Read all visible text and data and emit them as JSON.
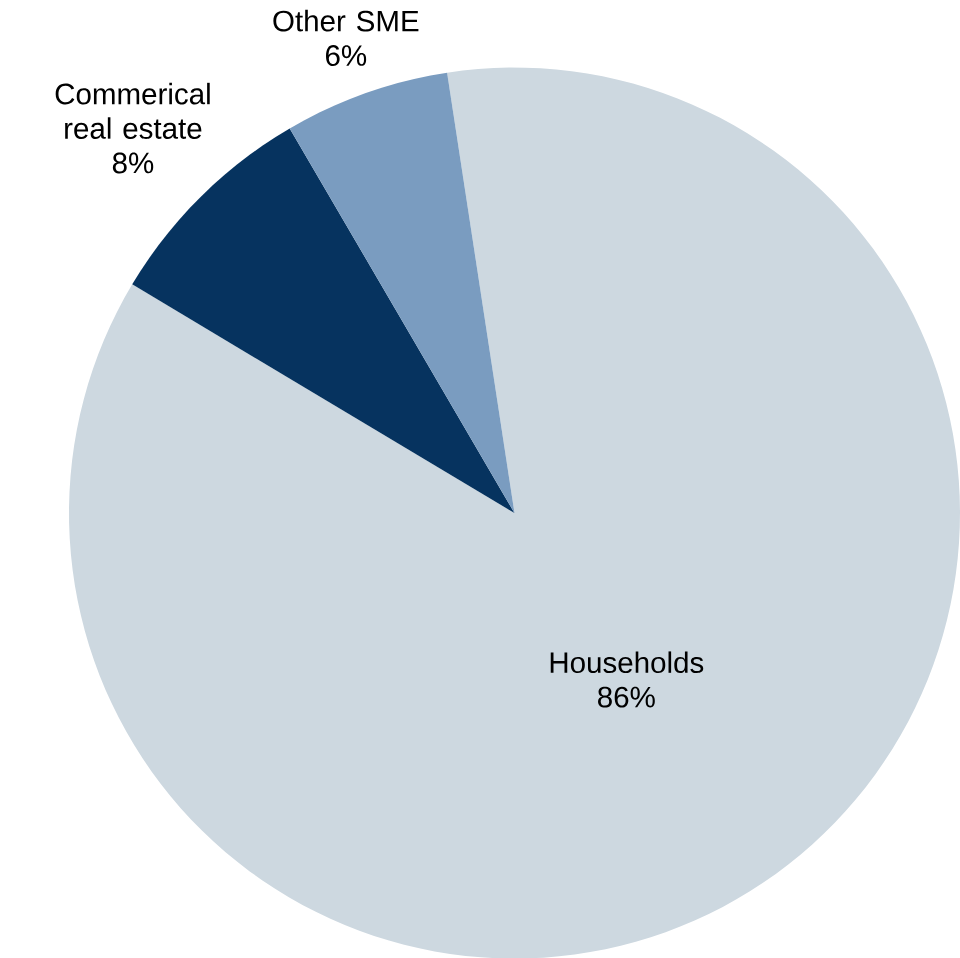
{
  "chart_data": {
    "type": "pie",
    "categories": [
      "Households",
      "Commerical real estate",
      "Other SME"
    ],
    "values": [
      86,
      8,
      6
    ],
    "colors": [
      "#cdd8e0",
      "#06335f",
      "#7a9cc0"
    ],
    "value_labels": [
      "86%",
      "8%",
      "6%"
    ]
  }
}
